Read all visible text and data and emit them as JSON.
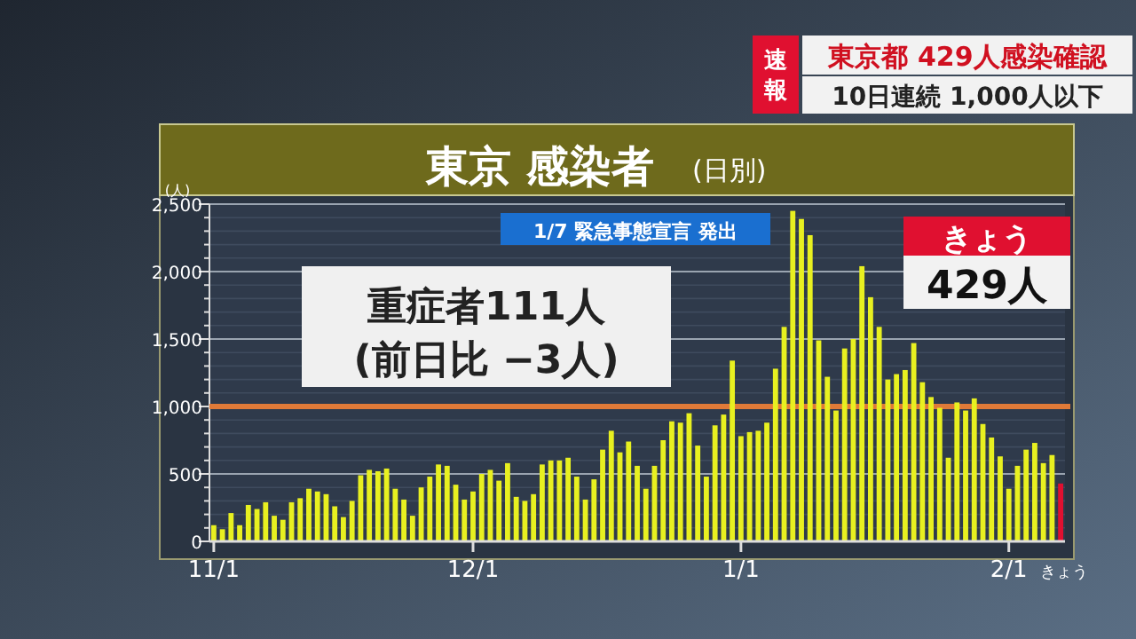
{
  "chart_data": {
    "type": "bar",
    "title": "東京 感染者",
    "subtitle": "(日別)",
    "ylabel": "(人)",
    "categories": [
      "11/1",
      null,
      null,
      null,
      null,
      null,
      null,
      null,
      null,
      null,
      null,
      null,
      null,
      null,
      null,
      null,
      null,
      null,
      null,
      null,
      null,
      null,
      null,
      null,
      null,
      null,
      null,
      null,
      null,
      null,
      "12/1",
      null,
      null,
      null,
      null,
      null,
      null,
      null,
      null,
      null,
      null,
      null,
      null,
      null,
      null,
      null,
      null,
      null,
      null,
      null,
      null,
      null,
      null,
      null,
      null,
      null,
      null,
      null,
      null,
      null,
      null,
      "1/1",
      null,
      null,
      null,
      null,
      null,
      null,
      null,
      null,
      null,
      null,
      null,
      null,
      null,
      null,
      null,
      null,
      null,
      null,
      null,
      null,
      null,
      null,
      null,
      null,
      null,
      null,
      null,
      null,
      null,
      null,
      "2/1",
      null,
      null,
      null,
      null,
      null,
      "きょう"
    ],
    "values": [
      120,
      90,
      210,
      120,
      270,
      240,
      290,
      190,
      160,
      290,
      320,
      390,
      370,
      350,
      260,
      180,
      300,
      490,
      530,
      520,
      540,
      390,
      310,
      190,
      400,
      480,
      570,
      560,
      420,
      310,
      370,
      500,
      530,
      450,
      580,
      330,
      300,
      350,
      570,
      600,
      600,
      620,
      480,
      310,
      460,
      680,
      820,
      660,
      740,
      560,
      390,
      560,
      750,
      890,
      880,
      950,
      710,
      480,
      860,
      940,
      1340,
      780,
      810,
      820,
      880,
      1280,
      1590,
      2450,
      2390,
      2270,
      1490,
      1220,
      970,
      1430,
      1500,
      2040,
      1810,
      1590,
      1200,
      1240,
      1270,
      1470,
      1180,
      1070,
      990,
      620,
      1030,
      970,
      1060,
      870,
      770,
      630,
      390,
      560,
      680,
      730,
      580,
      640,
      429
    ],
    "colors": [
      "#e8f020",
      "#e8f020",
      "#e8f020",
      "#e8f020",
      "#e8f020",
      "#e8f020",
      "#e8f020",
      "#e8f020",
      "#e8f020",
      "#e8f020",
      "#e8f020",
      "#e8f020",
      "#e8f020",
      "#e8f020",
      "#e8f020",
      "#e8f020",
      "#e8f020",
      "#e8f020",
      "#e8f020",
      "#e8f020",
      "#e8f020",
      "#e8f020",
      "#e8f020",
      "#e8f020",
      "#e8f020",
      "#e8f020",
      "#e8f020",
      "#e8f020",
      "#e8f020",
      "#e8f020",
      "#e8f020",
      "#e8f020",
      "#e8f020",
      "#e8f020",
      "#e8f020",
      "#e8f020",
      "#e8f020",
      "#e8f020",
      "#e8f020",
      "#e8f020",
      "#e8f020",
      "#e8f020",
      "#e8f020",
      "#e8f020",
      "#e8f020",
      "#e8f020",
      "#e8f020",
      "#e8f020",
      "#e8f020",
      "#e8f020",
      "#e8f020",
      "#e8f020",
      "#e8f020",
      "#e8f020",
      "#e8f020",
      "#e8f020",
      "#e8f020",
      "#e8f020",
      "#e8f020",
      "#e8f020",
      "#e8f020",
      "#e8f020",
      "#e8f020",
      "#e8f020",
      "#e8f020",
      "#e8f020",
      "#e8f020",
      "#e8f020",
      "#e8f020",
      "#e8f020",
      "#e8f020",
      "#e8f020",
      "#e8f020",
      "#e8f020",
      "#e8f020",
      "#e8f020",
      "#e8f020",
      "#e8f020",
      "#e8f020",
      "#e8f020",
      "#e8f020",
      "#e8f020",
      "#e8f020",
      "#e8f020",
      "#e8f020",
      "#e8f020",
      "#e8f020",
      "#e8f020",
      "#e8f020",
      "#e8f020",
      "#e8f020",
      "#e8f020",
      "#e8f020",
      "#e8f020",
      "#e8f020",
      "#e8f020",
      "#e8f020",
      "#e8f020",
      "#e01030"
    ],
    "ylim": [
      0,
      2500
    ],
    "yticks": [
      0,
      {
        "value": 100,
        "label": null
      },
      {
        "value": 200,
        "label": null
      },
      {
        "value": 300,
        "label": null
      },
      {
        "value": 400,
        "label": null
      },
      500,
      {
        "value": 600,
        "label": null
      },
      {
        "value": 700,
        "label": null
      },
      {
        "value": 800,
        "label": null
      },
      {
        "value": 900,
        "label": null
      },
      {
        "value": 1000,
        "label": "1,000"
      },
      {
        "value": 1100,
        "label": null
      },
      {
        "value": 1200,
        "label": null
      },
      {
        "value": 1300,
        "label": null
      },
      {
        "value": 1400,
        "label": null
      },
      {
        "value": 1500,
        "label": "1,500"
      },
      {
        "value": 1600,
        "label": null
      },
      {
        "value": 1700,
        "label": null
      },
      {
        "value": 1800,
        "label": null
      },
      {
        "value": 1900,
        "label": null
      },
      {
        "value": 2000,
        "label": "2,000"
      },
      {
        "value": 2100,
        "label": null
      },
      {
        "value": 2200,
        "label": null
      },
      {
        "value": 2300,
        "label": null
      },
      {
        "value": 2400,
        "label": null
      },
      {
        "value": 2500,
        "label": "2,500"
      }
    ],
    "grid": "y",
    "ref_lines": [
      {
        "axis": "y",
        "value": 1000,
        "color": "#e07a38"
      }
    ],
    "annotations": [
      "速報",
      "東京都 429人感染確認",
      "10日連続 1,000人以下",
      "1/7 緊急事態宣言 発出",
      "重症者111人",
      "(前日比 −3人)",
      "きょう",
      "429人"
    ]
  }
}
